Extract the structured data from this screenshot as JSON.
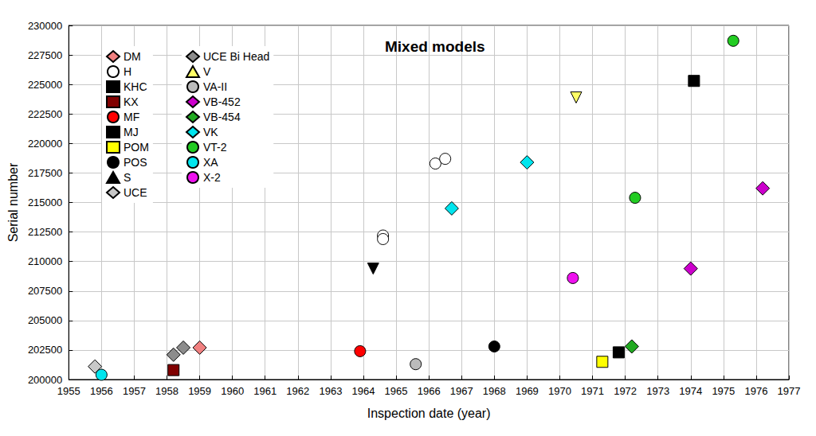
{
  "chart_data": {
    "type": "scatter",
    "title": "Mixed models",
    "x_label": "Inspection date (year)",
    "y_label": "Serial number",
    "xlim": [
      1955,
      1977
    ],
    "xticks": [
      1955,
      1956,
      1957,
      1958,
      1959,
      1960,
      1961,
      1962,
      1963,
      1964,
      1965,
      1966,
      1967,
      1968,
      1969,
      1970,
      1971,
      1972,
      1973,
      1974,
      1975,
      1976,
      1977
    ],
    "ylim": [
      200000,
      230000
    ],
    "yticks": [
      200000,
      202500,
      205000,
      207500,
      210000,
      212500,
      215000,
      217500,
      220000,
      222500,
      225000,
      227500,
      230000
    ],
    "grid": true,
    "legend": "upper left",
    "series": [
      {
        "name": "DM",
        "color": "#f08080",
        "marker": "diamond",
        "x": [
          1959.0
        ],
        "values": [
          202700
        ]
      },
      {
        "name": "H",
        "color": "#ffffff",
        "marker": "circle",
        "x": [
          1964.6,
          1964.6,
          1966.2,
          1966.5
        ],
        "values": [
          212200,
          211900,
          218300,
          218700
        ]
      },
      {
        "name": "KHC",
        "color": "#000000",
        "marker": "square",
        "x": [
          1974.1
        ],
        "values": [
          225300
        ]
      },
      {
        "name": "KX",
        "color": "#800000",
        "marker": "square",
        "x": [
          1958.2
        ],
        "values": [
          200800
        ]
      },
      {
        "name": "MF",
        "color": "#ff0000",
        "marker": "circle",
        "x": [
          1963.9
        ],
        "values": [
          202400
        ]
      },
      {
        "name": "MJ",
        "color": "#000000",
        "marker": "square",
        "x": [
          1971.8
        ],
        "values": [
          202300
        ]
      },
      {
        "name": "POM",
        "color": "#ffff00",
        "marker": "square",
        "x": [
          1971.3
        ],
        "values": [
          201500
        ]
      },
      {
        "name": "POS",
        "color": "#000000",
        "marker": "circle",
        "x": [
          1968.0
        ],
        "values": [
          202800
        ]
      },
      {
        "name": "S",
        "color": "#000000",
        "marker": "triangle_down",
        "x": [
          1964.3
        ],
        "values": [
          209400
        ]
      },
      {
        "name": "UCE",
        "color": "#c8c8c8",
        "marker": "diamond",
        "x": [
          1955.8
        ],
        "values": [
          201100
        ]
      },
      {
        "name": "UCE Bi Head",
        "color": "#8c8c8c",
        "marker": "diamond",
        "x": [
          1958.2,
          1958.5
        ],
        "values": [
          202100,
          202700
        ]
      },
      {
        "name": "V",
        "color": "#ffff66",
        "marker": "triangle_down",
        "x": [
          1970.5
        ],
        "values": [
          223900
        ]
      },
      {
        "name": "VA-II",
        "color": "#bbbbbb",
        "marker": "circle",
        "x": [
          1965.6
        ],
        "values": [
          201300
        ]
      },
      {
        "name": "VB-452",
        "color": "#cc00cc",
        "marker": "diamond",
        "x": [
          1974.0,
          1976.2
        ],
        "values": [
          209400,
          216200
        ]
      },
      {
        "name": "VB-454",
        "color": "#22aa22",
        "marker": "diamond",
        "x": [
          1972.2
        ],
        "values": [
          202800
        ]
      },
      {
        "name": "VK",
        "color": "#00e5ee",
        "marker": "diamond",
        "x": [
          1966.7,
          1969.0
        ],
        "values": [
          214500,
          218400
        ]
      },
      {
        "name": "VT-2",
        "color": "#22cc22",
        "marker": "circle",
        "x": [
          1972.3,
          1975.3
        ],
        "values": [
          215400,
          228700
        ]
      },
      {
        "name": "XA",
        "color": "#00e5ee",
        "marker": "circle",
        "x": [
          1956.0
        ],
        "values": [
          200400
        ]
      },
      {
        "name": "X-2",
        "color": "#ee11ee",
        "marker": "circle",
        "x": [
          1970.4
        ],
        "values": [
          208600
        ]
      }
    ]
  }
}
